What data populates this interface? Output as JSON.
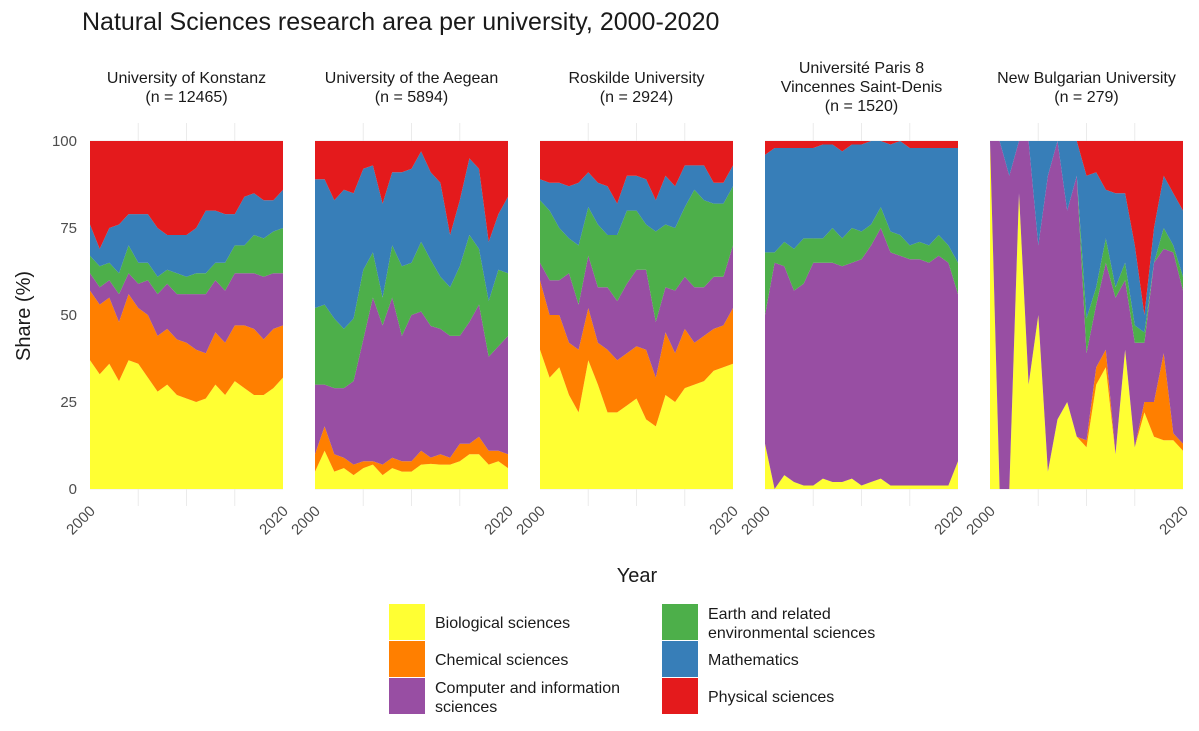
{
  "chart_data": {
    "type": "area",
    "stacked": "percent",
    "title": "Natural Sciences research area per university, 2000-2020",
    "xlabel": "Year",
    "ylabel": "Share (%)",
    "xlim": [
      2000,
      2020
    ],
    "ylim": [
      0,
      100
    ],
    "x_ticks": [
      "2000",
      "2020"
    ],
    "y_ticks": [
      "0",
      "25",
      "50",
      "75",
      "100"
    ],
    "grid": true,
    "legend_position": "bottom",
    "x": [
      2000,
      2001,
      2002,
      2003,
      2004,
      2005,
      2006,
      2007,
      2008,
      2009,
      2010,
      2011,
      2012,
      2013,
      2014,
      2015,
      2016,
      2017,
      2018,
      2019,
      2020
    ],
    "series_meta": [
      {
        "name": "Biological sciences",
        "color": "#ffff33"
      },
      {
        "name": "Chemical sciences",
        "color": "#ff7f00"
      },
      {
        "name": "Computer and information sciences",
        "color": "#984ea3"
      },
      {
        "name": "Earth and related environmental sciences",
        "color": "#4daf4a"
      },
      {
        "name": "Mathematics",
        "color": "#377eb8"
      },
      {
        "name": "Physical sciences",
        "color": "#e41a1c"
      }
    ],
    "legend_items": [
      {
        "label": "Biological sciences",
        "color": "#ffff33"
      },
      {
        "label": "Chemical sciences",
        "color": "#ff7f00"
      },
      {
        "label": "Computer and information sciences",
        "color": "#984ea3"
      },
      {
        "label": "Earth and related environmental sciences",
        "color": "#4daf4a"
      },
      {
        "label": "Mathematics",
        "color": "#377eb8"
      },
      {
        "label": "Physical sciences",
        "color": "#e41a1c"
      }
    ],
    "panels": [
      {
        "strip": [
          "University of Konstanz",
          "(n = 12465)"
        ],
        "series": [
          {
            "name": "Biological sciences",
            "values": [
              37,
              33,
              36,
              31,
              37,
              36,
              32,
              28,
              30,
              27,
              26,
              25,
              26,
              30,
              27,
              31,
              29,
              27,
              27,
              29,
              32
            ]
          },
          {
            "name": "Chemical sciences",
            "values": [
              20,
              20,
              19,
              17,
              19,
              16,
              18,
              16,
              16,
              16,
              16,
              15,
              13,
              15,
              15,
              16,
              18,
              19,
              16,
              17,
              15
            ]
          },
          {
            "name": "Computer and information sciences",
            "values": [
              5,
              5,
              5,
              8,
              6,
              7,
              10,
              12,
              13,
              13,
              14,
              16,
              17,
              15,
              15,
              15,
              15,
              16,
              18,
              16,
              15
            ]
          },
          {
            "name": "Earth and related environmental sciences",
            "values": [
              5,
              6,
              5,
              6,
              8,
              6,
              5,
              5,
              4,
              6,
              5,
              6,
              6,
              5,
              8,
              8,
              8,
              11,
              11,
              12,
              13
            ]
          },
          {
            "name": "Mathematics",
            "values": [
              9,
              5,
              10,
              14,
              9,
              14,
              14,
              14,
              10,
              11,
              12,
              13,
              18,
              15,
              14,
              9,
              14,
              12,
              11,
              9,
              11
            ]
          },
          {
            "name": "Physical sciences",
            "values": [
              24,
              31,
              25,
              24,
              21,
              21,
              21,
              25,
              27,
              27,
              27,
              25,
              20,
              20,
              21,
              21,
              16,
              15,
              17,
              17,
              14
            ]
          }
        ]
      },
      {
        "strip": [
          "University of the Aegean",
          "(n = 5894)"
        ],
        "series": [
          {
            "name": "Biological sciences",
            "values": [
              5,
              11,
              5,
              6,
              4,
              6,
              7,
              4,
              6,
              5,
              5,
              7,
              8,
              7,
              7,
              8,
              10,
              10,
              7,
              8,
              6
            ]
          },
          {
            "name": "Chemical sciences",
            "values": [
              5,
              7,
              5,
              3,
              3,
              2,
              1,
              3,
              3,
              3,
              3,
              4,
              2,
              3,
              2,
              5,
              3,
              5,
              4,
              3,
              4
            ]
          },
          {
            "name": "Computer and information sciences",
            "values": [
              20,
              12,
              19,
              20,
              24,
              35,
              47,
              40,
              46,
              36,
              42,
              40,
              42,
              36,
              35,
              31,
              35,
              38,
              27,
              30,
              34
            ]
          },
          {
            "name": "Earth and related environmental sciences",
            "values": [
              22,
              23,
              20,
              17,
              18,
              20,
              13,
              8,
              15,
              20,
              15,
              20,
              21,
              15,
              14,
              20,
              25,
              16,
              16,
              22,
              18
            ]
          },
          {
            "name": "Mathematics",
            "values": [
              37,
              36,
              34,
              40,
              36,
              29,
              25,
              27,
              21,
              27,
              27,
              26,
              28,
              27,
              15,
              19,
              22,
              23,
              17,
              16,
              22
            ]
          },
          {
            "name": "Physical sciences",
            "values": [
              11,
              11,
              17,
              14,
              15,
              8,
              7,
              18,
              9,
              9,
              8,
              3,
              10,
              12,
              27,
              17,
              5,
              8,
              29,
              21,
              16
            ]
          }
        ]
      },
      {
        "strip": [
          "Roskilde University",
          "(n = 2924)"
        ],
        "series": [
          {
            "name": "Biological sciences",
            "values": [
              40,
              32,
              35,
              27,
              22,
              37,
              30,
              22,
              22,
              24,
              26,
              20,
              18,
              27,
              25,
              29,
              30,
              31,
              34,
              35,
              36
            ]
          },
          {
            "name": "Chemical sciences",
            "values": [
              20,
              18,
              15,
              15,
              18,
              15,
              12,
              18,
              15,
              15,
              15,
              20,
              14,
              18,
              14,
              17,
              12,
              13,
              12,
              12,
              16
            ]
          },
          {
            "name": "Computer and information sciences",
            "values": [
              5,
              10,
              10,
              20,
              13,
              15,
              16,
              18,
              17,
              20,
              22,
              23,
              16,
              13,
              18,
              15,
              16,
              14,
              15,
              14,
              18
            ]
          },
          {
            "name": "Earth and related environmental sciences",
            "values": [
              18,
              20,
              15,
              10,
              17,
              14,
              18,
              15,
              19,
              21,
              17,
              13,
              26,
              18,
              18,
              20,
              28,
              25,
              21,
              21,
              17
            ]
          },
          {
            "name": "Mathematics",
            "values": [
              6,
              8,
              13,
              15,
              18,
              10,
              12,
              14,
              9,
              10,
              10,
              13,
              9,
              14,
              12,
              12,
              7,
              10,
              6,
              6,
              6
            ]
          },
          {
            "name": "Physical sciences",
            "values": [
              11,
              12,
              12,
              13,
              12,
              9,
              12,
              13,
              18,
              10,
              10,
              11,
              17,
              10,
              13,
              7,
              7,
              7,
              12,
              12,
              7
            ]
          }
        ]
      },
      {
        "strip": [
          "Université Paris 8",
          "Vincennes Saint-Denis",
          "(n = 1520)"
        ],
        "series": [
          {
            "name": "Biological sciences",
            "values": [
              13,
              0,
              4,
              2,
              1,
              1,
              3,
              2,
              2,
              3,
              1,
              2,
              3,
              1,
              1,
              1,
              1,
              1,
              1,
              1,
              8
            ]
          },
          {
            "name": "Chemical sciences",
            "values": [
              0,
              0,
              0,
              0,
              0,
              0,
              0,
              0,
              0,
              0,
              0,
              0,
              0,
              0,
              0,
              0,
              0,
              0,
              0,
              0,
              0
            ]
          },
          {
            "name": "Computer and information sciences",
            "values": [
              37,
              65,
              60,
              55,
              58,
              64,
              62,
              63,
              62,
              62,
              65,
              68,
              72,
              67,
              66,
              65,
              65,
              64,
              66,
              64,
              48
            ]
          },
          {
            "name": "Earth and related environmental sciences",
            "values": [
              18,
              3,
              7,
              12,
              13,
              7,
              7,
              10,
              8,
              10,
              8,
              6,
              6,
              6,
              6,
              4,
              5,
              5,
              6,
              5,
              9
            ]
          },
          {
            "name": "Mathematics",
            "values": [
              28,
              30,
              27,
              29,
              26,
              26,
              27,
              24,
              25,
              24,
              25,
              24,
              19,
              25,
              27,
              28,
              27,
              28,
              25,
              28,
              33
            ]
          },
          {
            "name": "Physical sciences",
            "values": [
              4,
              2,
              2,
              2,
              2,
              2,
              1,
              1,
              3,
              1,
              1,
              0,
              0,
              1,
              0,
              2,
              2,
              2,
              2,
              2,
              2
            ]
          }
        ]
      },
      {
        "strip": [
          "New Bulgarian University",
          "(n = 279)"
        ],
        "series": [
          {
            "name": "Biological sciences",
            "values": [
              100,
              0,
              0,
              85,
              30,
              50,
              5,
              20,
              25,
              15,
              12,
              30,
              35,
              10,
              40,
              12,
              22,
              15,
              14,
              14,
              11
            ]
          },
          {
            "name": "Chemical sciences",
            "values": [
              0,
              0,
              0,
              0,
              0,
              0,
              0,
              0,
              0,
              0,
              2,
              5,
              5,
              0,
              0,
              0,
              3,
              10,
              25,
              2,
              2
            ]
          },
          {
            "name": "Computer and information sciences",
            "values": [
              0,
              100,
              90,
              15,
              70,
              20,
              85,
              80,
              55,
              75,
              25,
              18,
              25,
              45,
              20,
              30,
              17,
              40,
              30,
              52,
              44
            ]
          },
          {
            "name": "Earth and related environmental sciences",
            "values": [
              0,
              0,
              0,
              0,
              0,
              0,
              0,
              0,
              0,
              0,
              10,
              5,
              7,
              3,
              5,
              5,
              3,
              0,
              6,
              2,
              4
            ]
          },
          {
            "name": "Mathematics",
            "values": [
              0,
              0,
              10,
              0,
              0,
              30,
              10,
              0,
              20,
              10,
              41,
              33,
              14,
              27,
              20,
              23,
              5,
              10,
              15,
              15,
              19
            ]
          },
          {
            "name": "Physical sciences",
            "values": [
              0,
              0,
              0,
              0,
              0,
              0,
              0,
              0,
              0,
              0,
              10,
              9,
              14,
              15,
              15,
              30,
              50,
              25,
              10,
              15,
              20
            ]
          }
        ]
      }
    ]
  }
}
